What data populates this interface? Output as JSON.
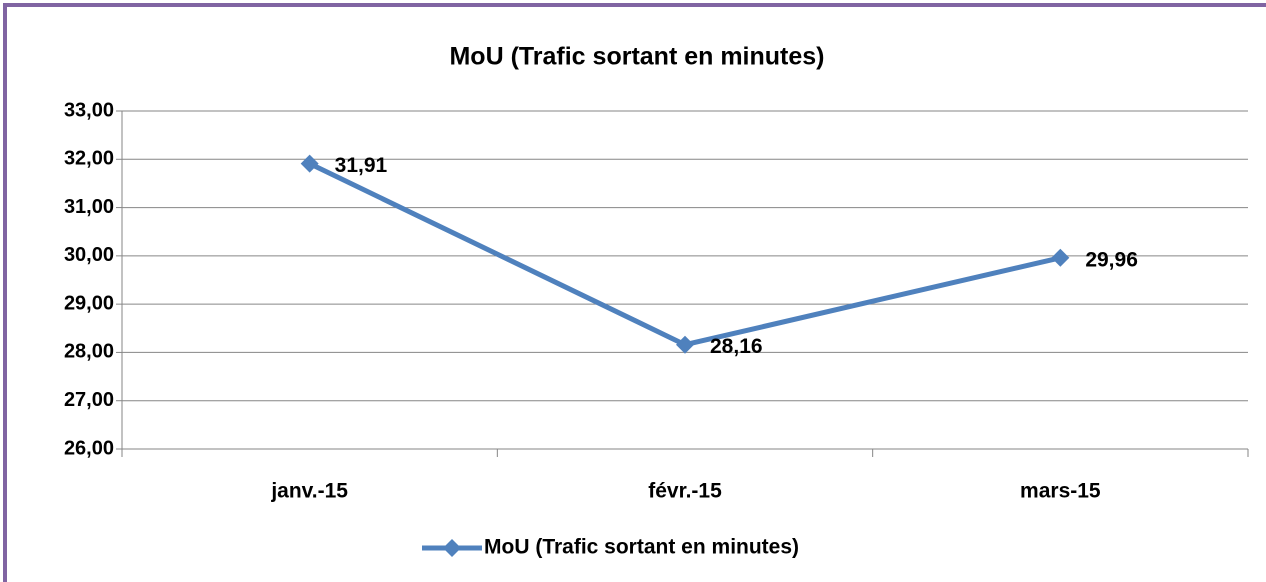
{
  "chart_data": {
    "type": "line",
    "title": "MoU (Trafic sortant en minutes)",
    "categories": [
      "janv.-15",
      "févr.-15",
      "mars-15"
    ],
    "series": [
      {
        "name": "MoU (Trafic sortant en minutes)",
        "color": "#4f81bd",
        "values": [
          31.91,
          28.16,
          29.96
        ],
        "value_labels": [
          "31,91",
          "28,16",
          "29,96"
        ]
      }
    ],
    "ylim": [
      26,
      33
    ],
    "yticks": [
      {
        "value": 26,
        "label": "26,00"
      },
      {
        "value": 27,
        "label": "27,00"
      },
      {
        "value": 28,
        "label": "28,00"
      },
      {
        "value": 29,
        "label": "29,00"
      },
      {
        "value": 30,
        "label": "30,00"
      },
      {
        "value": 31,
        "label": "31,00"
      },
      {
        "value": 32,
        "label": "32,00"
      },
      {
        "value": 33,
        "label": "33,00"
      }
    ],
    "grid": true,
    "legend": "bottom"
  }
}
